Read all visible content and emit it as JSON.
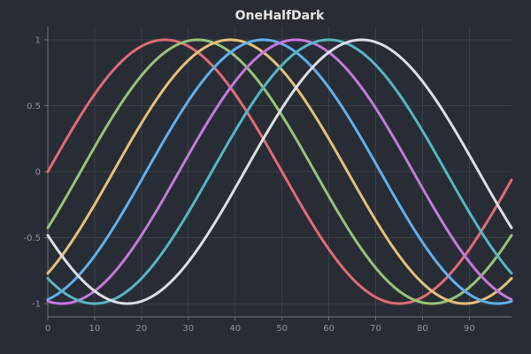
{
  "chart_data": {
    "type": "line",
    "title": "OneHalfDark",
    "xlabel": "",
    "ylabel": "",
    "xlim": [
      0,
      99
    ],
    "ylim": [
      -1.1,
      1.1
    ],
    "x_ticks": [
      0,
      10,
      20,
      30,
      40,
      50,
      60,
      70,
      80,
      90
    ],
    "x_tick_labels": [
      "0",
      "10",
      "20",
      "30",
      "40",
      "50",
      "60",
      "70",
      "80",
      "90"
    ],
    "y_ticks": [
      1,
      0.5,
      0,
      -0.5,
      -1
    ],
    "y_tick_labels": [
      "1",
      "0.5",
      "0",
      "-0.5",
      "-1"
    ],
    "grid": true,
    "legend": "none",
    "x_range": {
      "start": 0,
      "end": 99,
      "step": 1
    },
    "series": [
      {
        "color": "#e06c75",
        "formula": "sin(2*pi*x/100 + phase)",
        "phase_x": 0
      },
      {
        "color": "#98c379",
        "formula": "sin(2*pi*x/100 + phase)",
        "phase_x": 7
      },
      {
        "color": "#e5c07b",
        "formula": "sin(2*pi*x/100 + phase)",
        "phase_x": 14
      },
      {
        "color": "#61afef",
        "formula": "sin(2*pi*x/100 + phase)",
        "phase_x": 21
      },
      {
        "color": "#c678dd",
        "formula": "sin(2*pi*x/100 + phase)",
        "phase_x": 28
      },
      {
        "color": "#56b6c2",
        "formula": "sin(2*pi*x/100 + phase)",
        "phase_x": 35
      },
      {
        "color": "#dcdfe4",
        "formula": "sin(2*pi*x/100 + phase)",
        "phase_x": 42
      }
    ]
  }
}
